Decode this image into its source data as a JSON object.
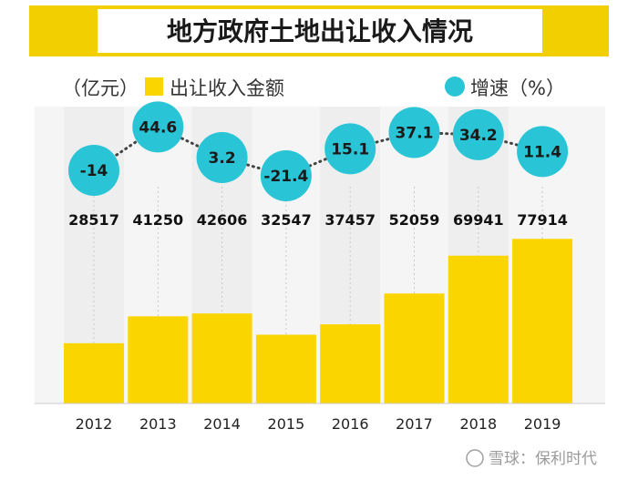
{
  "chart_data": {
    "type": "bar",
    "title": "地方政府土地出让收入情况",
    "categories": [
      "2012",
      "2013",
      "2014",
      "2015",
      "2016",
      "2017",
      "2018",
      "2019"
    ],
    "series": [
      {
        "name": "出让收入金额",
        "axis_unit": "（亿元）",
        "values": [
          28517,
          41250,
          42606,
          32547,
          37457,
          52059,
          69941,
          77914
        ]
      },
      {
        "name": "增速",
        "axis_unit": "（%）",
        "type": "line",
        "values": [
          -14,
          44.6,
          3.2,
          -21.4,
          15.1,
          37.1,
          34.2,
          11.4
        ]
      }
    ],
    "ylim": [
      0,
      100000
    ],
    "growth_ylim": [
      -30,
      50
    ],
    "grid": false,
    "legend": "top",
    "colors": {
      "bar": "#fbd500",
      "marker": "#29c5d6",
      "band": "#eeeeee"
    }
  },
  "watermark": {
    "text": "雪球：保利时代"
  }
}
